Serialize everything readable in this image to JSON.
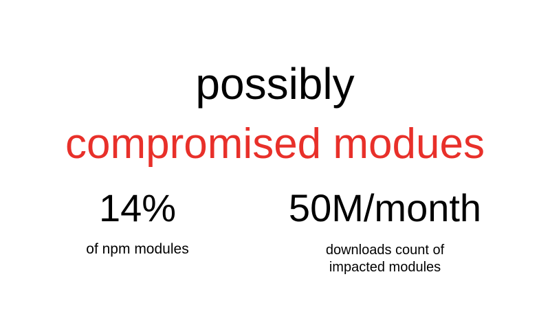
{
  "slide": {
    "headline_line1": "possibly",
    "headline_line2": "compromised modues",
    "accent_color": "#e8302a",
    "stats": [
      {
        "value": "14%",
        "caption": "of npm modules"
      },
      {
        "value": "50M/month",
        "caption": "downloads count of impacted modules"
      }
    ]
  }
}
